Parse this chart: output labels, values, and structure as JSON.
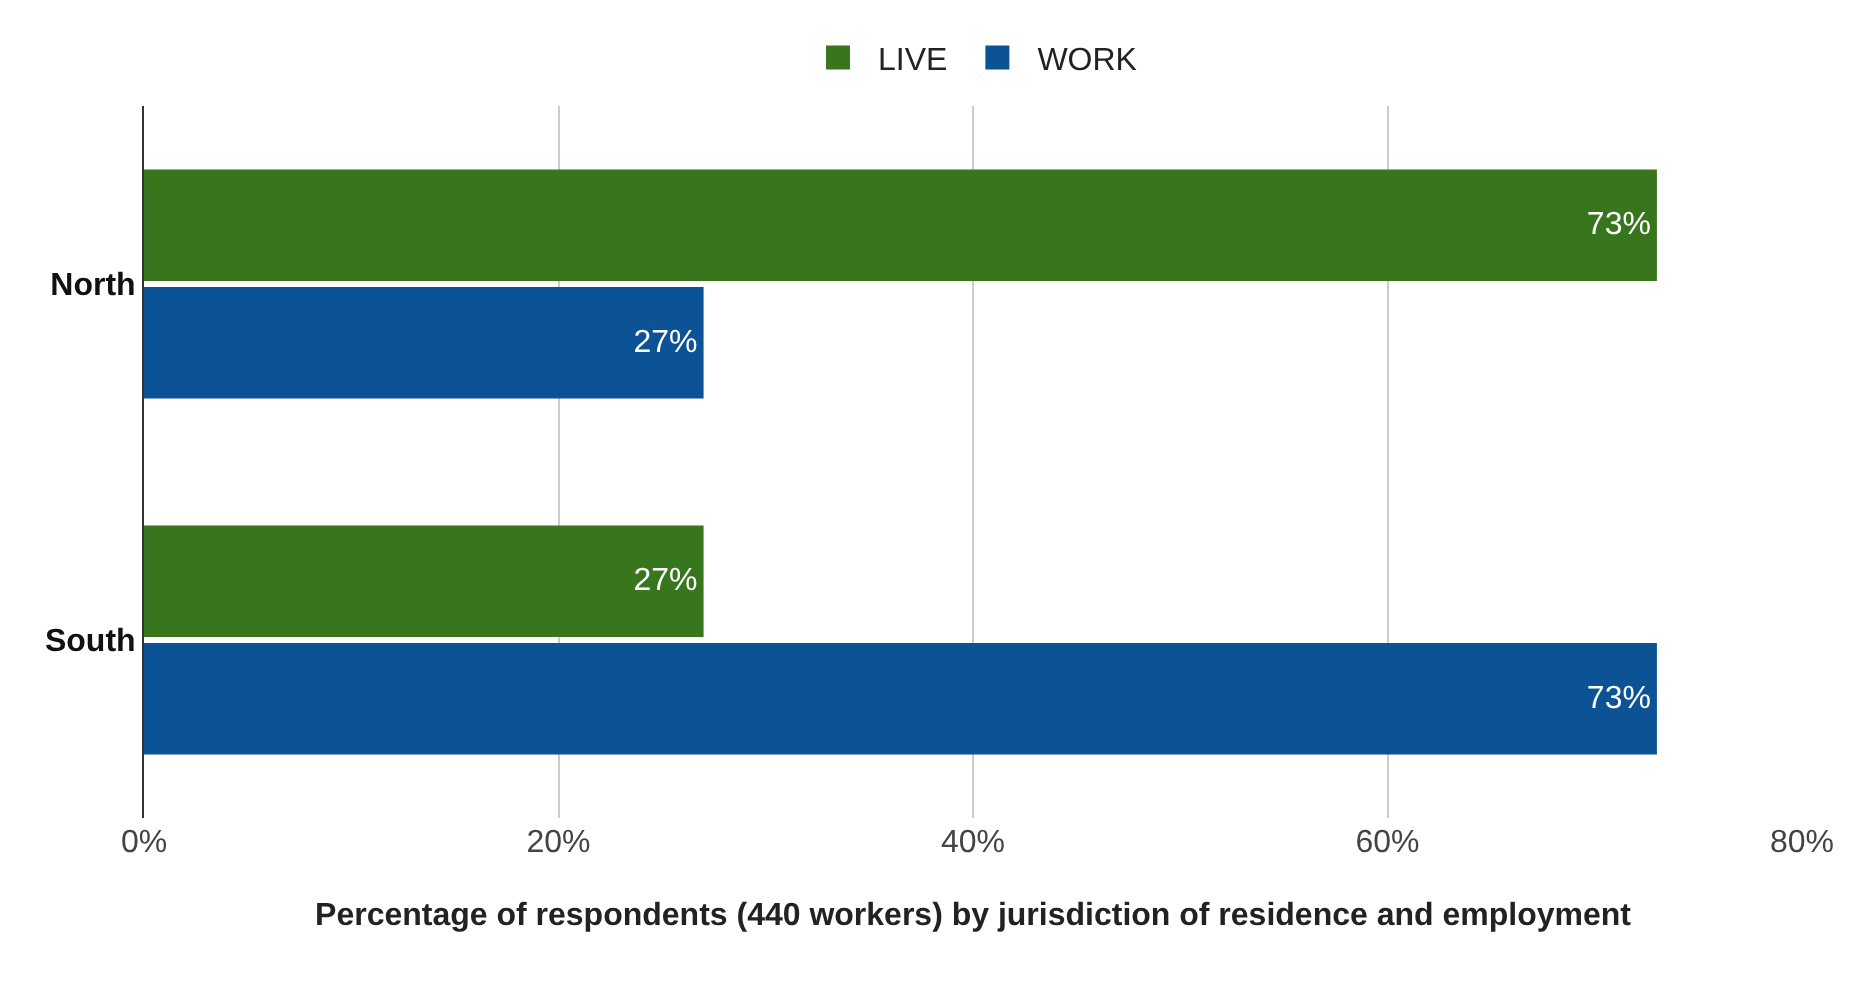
{
  "chart_data": {
    "type": "bar",
    "orientation": "horizontal",
    "xlabel": "Percentage of respondents (440 workers) by jurisdiction of residence and employment",
    "categories": [
      "North",
      "South"
    ],
    "series": [
      {
        "name": "LIVE",
        "color": "#38761d",
        "values": [
          73,
          27
        ],
        "value_labels": [
          "73%",
          "27%"
        ]
      },
      {
        "name": "WORK",
        "color": "#0b5394",
        "values": [
          27,
          73
        ],
        "value_labels": [
          "27%",
          "73%"
        ]
      }
    ],
    "xlim": [
      0,
      80
    ],
    "xticks": [
      {
        "value": 0,
        "label": "0%"
      },
      {
        "value": 20,
        "label": "20%"
      },
      {
        "value": 40,
        "label": "40%"
      },
      {
        "value": 60,
        "label": "60%"
      },
      {
        "value": 80,
        "label": "80%"
      }
    ],
    "grid": "x",
    "legend": "top"
  }
}
